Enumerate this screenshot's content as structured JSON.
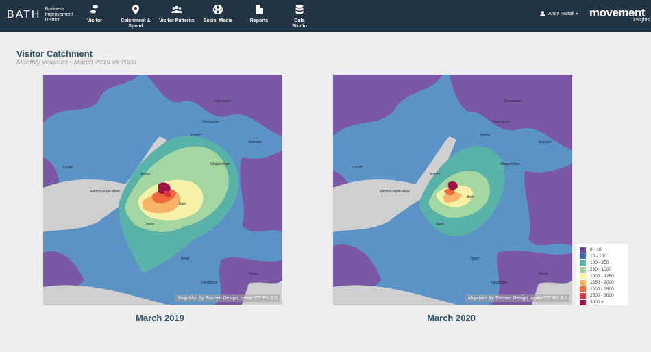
{
  "nav": {
    "brand_main": "BATH",
    "brand_sub": [
      "Business",
      "Improvement",
      "District"
    ],
    "items": [
      {
        "label": "Visitor",
        "icon": "footprints-icon"
      },
      {
        "label": "Catchment & Spend",
        "icon": "map-pin-icon"
      },
      {
        "label": "Visitor Patterns",
        "icon": "users-icon"
      },
      {
        "label": "Social Media",
        "icon": "globe-icon"
      },
      {
        "label": "Reports",
        "icon": "document-icon"
      },
      {
        "label": "Data Studio",
        "icon": "database-icon"
      }
    ],
    "user_name": "Andy Nuttall",
    "logo_main": "movement",
    "logo_sub": "insights"
  },
  "page": {
    "title": "Visitor Catchment",
    "subtitle": "Monthly volumes - March 2019 vs 2020"
  },
  "maps": [
    {
      "caption": "March 2019",
      "attribution": "Map tiles by Stamen Design, under CC BY 3.0"
    },
    {
      "caption": "March 2020",
      "attribution": "Map tiles by Stamen Design, under CC BY 3.0"
    }
  ],
  "town_labels": [
    "Cardiff",
    "Weston-super-Mare",
    "Bristol",
    "Bath",
    "Gloucester",
    "Cirencester",
    "Swindon",
    "Stroud",
    "Chippenham",
    "Wells",
    "Yeovil",
    "Dorchester",
    "Poole"
  ],
  "legend": [
    {
      "label": "0 - 10",
      "color": "#6b4c9a"
    },
    {
      "label": "10 - 100",
      "color": "#3a6db3"
    },
    {
      "label": "100 - 250",
      "color": "#59b2a8"
    },
    {
      "label": "250 - 1000",
      "color": "#a3d6a0"
    },
    {
      "label": "1000 - 1250",
      "color": "#f5f2a7"
    },
    {
      "label": "1250 - 2000",
      "color": "#f7b36a"
    },
    {
      "label": "2000 - 2500",
      "color": "#ec6a3e"
    },
    {
      "label": "2500 - 3000",
      "color": "#d6363f"
    },
    {
      "label": "3000 +",
      "color": "#9e1046"
    }
  ]
}
